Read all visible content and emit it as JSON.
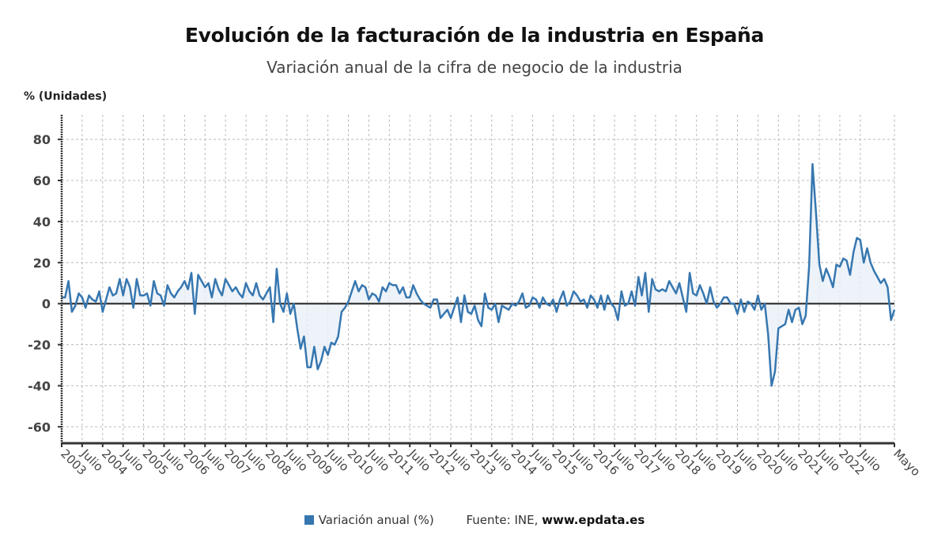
{
  "chart_data": {
    "type": "line",
    "title": "Evolución de la facturación de la industria en España",
    "subtitle": "Variación anual de la cifra de negocio de la industria",
    "ylabel": "% (Unidades)",
    "xlabel": "",
    "ylim": [
      -68,
      92
    ],
    "yticks": [
      80,
      60,
      40,
      20,
      0,
      -20,
      -40,
      -60
    ],
    "grid": true,
    "legend": {
      "position": "bottom-center",
      "entries": [
        "Variación anual (%)"
      ]
    },
    "source": {
      "prefix": "Fuente: INE, ",
      "site": "www.epdata.es"
    },
    "x_start": "2003-01",
    "x_end": "2023-05",
    "xtick_labels": [
      "2003",
      "Julio",
      "2004",
      "Julio",
      "2005",
      "Julio",
      "2006",
      "Julio",
      "2007",
      "Julio",
      "2008",
      "Julio",
      "2009",
      "Julio",
      "2010",
      "Julio",
      "2011",
      "Julio",
      "2012",
      "Julio",
      "2013",
      "Julio",
      "2014",
      "Julio",
      "2015",
      "Julio",
      "2016",
      "Julio",
      "2017",
      "Julio",
      "2018",
      "Julio",
      "2019",
      "Julio",
      "2020",
      "Julio",
      "2021",
      "Julio",
      "2022",
      "Julio",
      "Mayo"
    ],
    "series": [
      {
        "name": "Variación anual (%)",
        "color": "#3777b0",
        "fill": "#e8f0f8",
        "values": [
          3,
          3,
          11,
          -4,
          -1,
          5,
          3,
          -2,
          4,
          2,
          1,
          6,
          -4,
          2,
          8,
          4,
          5,
          12,
          4,
          12,
          8,
          -2,
          12,
          4,
          4,
          5,
          -1,
          11,
          5,
          4,
          -1,
          9,
          5,
          3,
          6,
          8,
          11,
          7,
          15,
          -5,
          14,
          11,
          8,
          10,
          3,
          12,
          7,
          4,
          12,
          9,
          6,
          8,
          5,
          3,
          10,
          6,
          4,
          10,
          4,
          2,
          5,
          8,
          -9,
          17,
          0,
          -4,
          5,
          -5,
          0,
          -12,
          -22,
          -16,
          -31,
          -31,
          -21,
          -32,
          -28,
          -21,
          -25,
          -19,
          -20,
          -16,
          -4,
          -2,
          1,
          6,
          11,
          6,
          9,
          8,
          2,
          5,
          4,
          1,
          8,
          6,
          10,
          9,
          9,
          5,
          8,
          3,
          3,
          9,
          5,
          2,
          0,
          -1,
          -2,
          2,
          2,
          -7,
          -5,
          -3,
          -7,
          -2,
          3,
          -9,
          4,
          -4,
          -5,
          -1,
          -8,
          -11,
          5,
          -2,
          -3,
          0,
          -9,
          -1,
          -2,
          -3,
          0,
          -1,
          1,
          5,
          -2,
          -1,
          3,
          2,
          -2,
          3,
          0,
          -1,
          2,
          -4,
          2,
          6,
          -1,
          1,
          6,
          4,
          1,
          2,
          -2,
          4,
          2,
          -2,
          4,
          -3,
          4,
          0,
          -2,
          -8,
          6,
          -1,
          0,
          6,
          -1,
          13,
          4,
          15,
          -4,
          12,
          7,
          6,
          7,
          6,
          11,
          8,
          5,
          10,
          3,
          -4,
          15,
          5,
          4,
          9,
          5,
          0,
          8,
          1,
          -2,
          0,
          3,
          3,
          0,
          0,
          -5,
          2,
          -4,
          1,
          0,
          -3,
          4,
          -3,
          0,
          -15,
          -40,
          -33,
          -12,
          -11,
          -10,
          -3,
          -9,
          -3,
          -2,
          -10,
          -6,
          18,
          68,
          45,
          19,
          11,
          17,
          13,
          8,
          19,
          18,
          22,
          21,
          14,
          25,
          32,
          31,
          20,
          27,
          20,
          16,
          13,
          10,
          12,
          8,
          -8,
          -3
        ]
      }
    ]
  }
}
